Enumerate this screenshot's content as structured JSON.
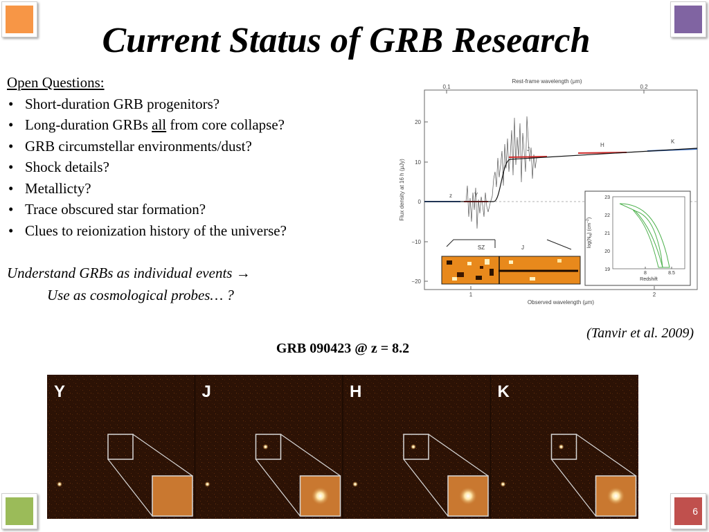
{
  "slide": {
    "title": "Current Status of GRB Research",
    "page_number": "6",
    "corner_colors": {
      "top_left": "#f79646",
      "top_right": "#8064a2",
      "bottom_left": "#9bbb59",
      "bottom_right": "#c0504d"
    }
  },
  "questions": {
    "heading": "Open Questions:",
    "items": [
      {
        "before": "Short-duration GRB progenitors?",
        "underlined": "",
        "after": ""
      },
      {
        "before": "Long-duration GRBs ",
        "underlined": "all",
        "after": " from core collapse?"
      },
      {
        "before": "GRB circumstellar environments/dust?",
        "underlined": "",
        "after": ""
      },
      {
        "before": "Shock details?",
        "underlined": "",
        "after": ""
      },
      {
        "before": "Metallicty?",
        "underlined": "",
        "after": ""
      },
      {
        "before": "Trace obscured star formation?",
        "underlined": "",
        "after": ""
      },
      {
        "before": "Clues to reionization history of the universe?",
        "underlined": "",
        "after": ""
      }
    ],
    "bullet": "•"
  },
  "understand": {
    "line1": "Understand GRBs as individual events",
    "arrow": "→",
    "line2": "Use as cosmological probes… ?"
  },
  "citation": "(Tanvir et al. 2009)",
  "grb_label": "GRB 090423 @ z = 8.2",
  "chart_data": [
    {
      "type": "line",
      "top_axis_label": "Rest-frame wavelength (μm)",
      "top_ticks": [
        "0.1",
        "0.2"
      ],
      "xlabel": "Observed wavelength (μm)",
      "x_ticks": [
        "1",
        "2"
      ],
      "ylabel": "Flux density at 16 h (μJy)",
      "y_ticks": [
        "20",
        "10",
        "0",
        "−10",
        "−20"
      ],
      "ylim": [
        -20,
        25
      ],
      "bands": [
        "z",
        "Y",
        "J",
        "H",
        "K"
      ],
      "spectrum_labels": [
        "SZ",
        "J"
      ],
      "inset": {
        "ylabel": "log(N",
        "ylabel_sub": "H",
        "ylabel_end": ") (cm",
        "ylabel_sup": "−2",
        "ylabel_close": ")",
        "xlabel": "Redshift",
        "x_ticks": [
          "8",
          "8.5"
        ],
        "y_ticks": [
          "23",
          "22",
          "21",
          "20",
          "19"
        ]
      }
    }
  ],
  "image_strip": {
    "bands": [
      "Y",
      "J",
      "H",
      "K"
    ]
  }
}
